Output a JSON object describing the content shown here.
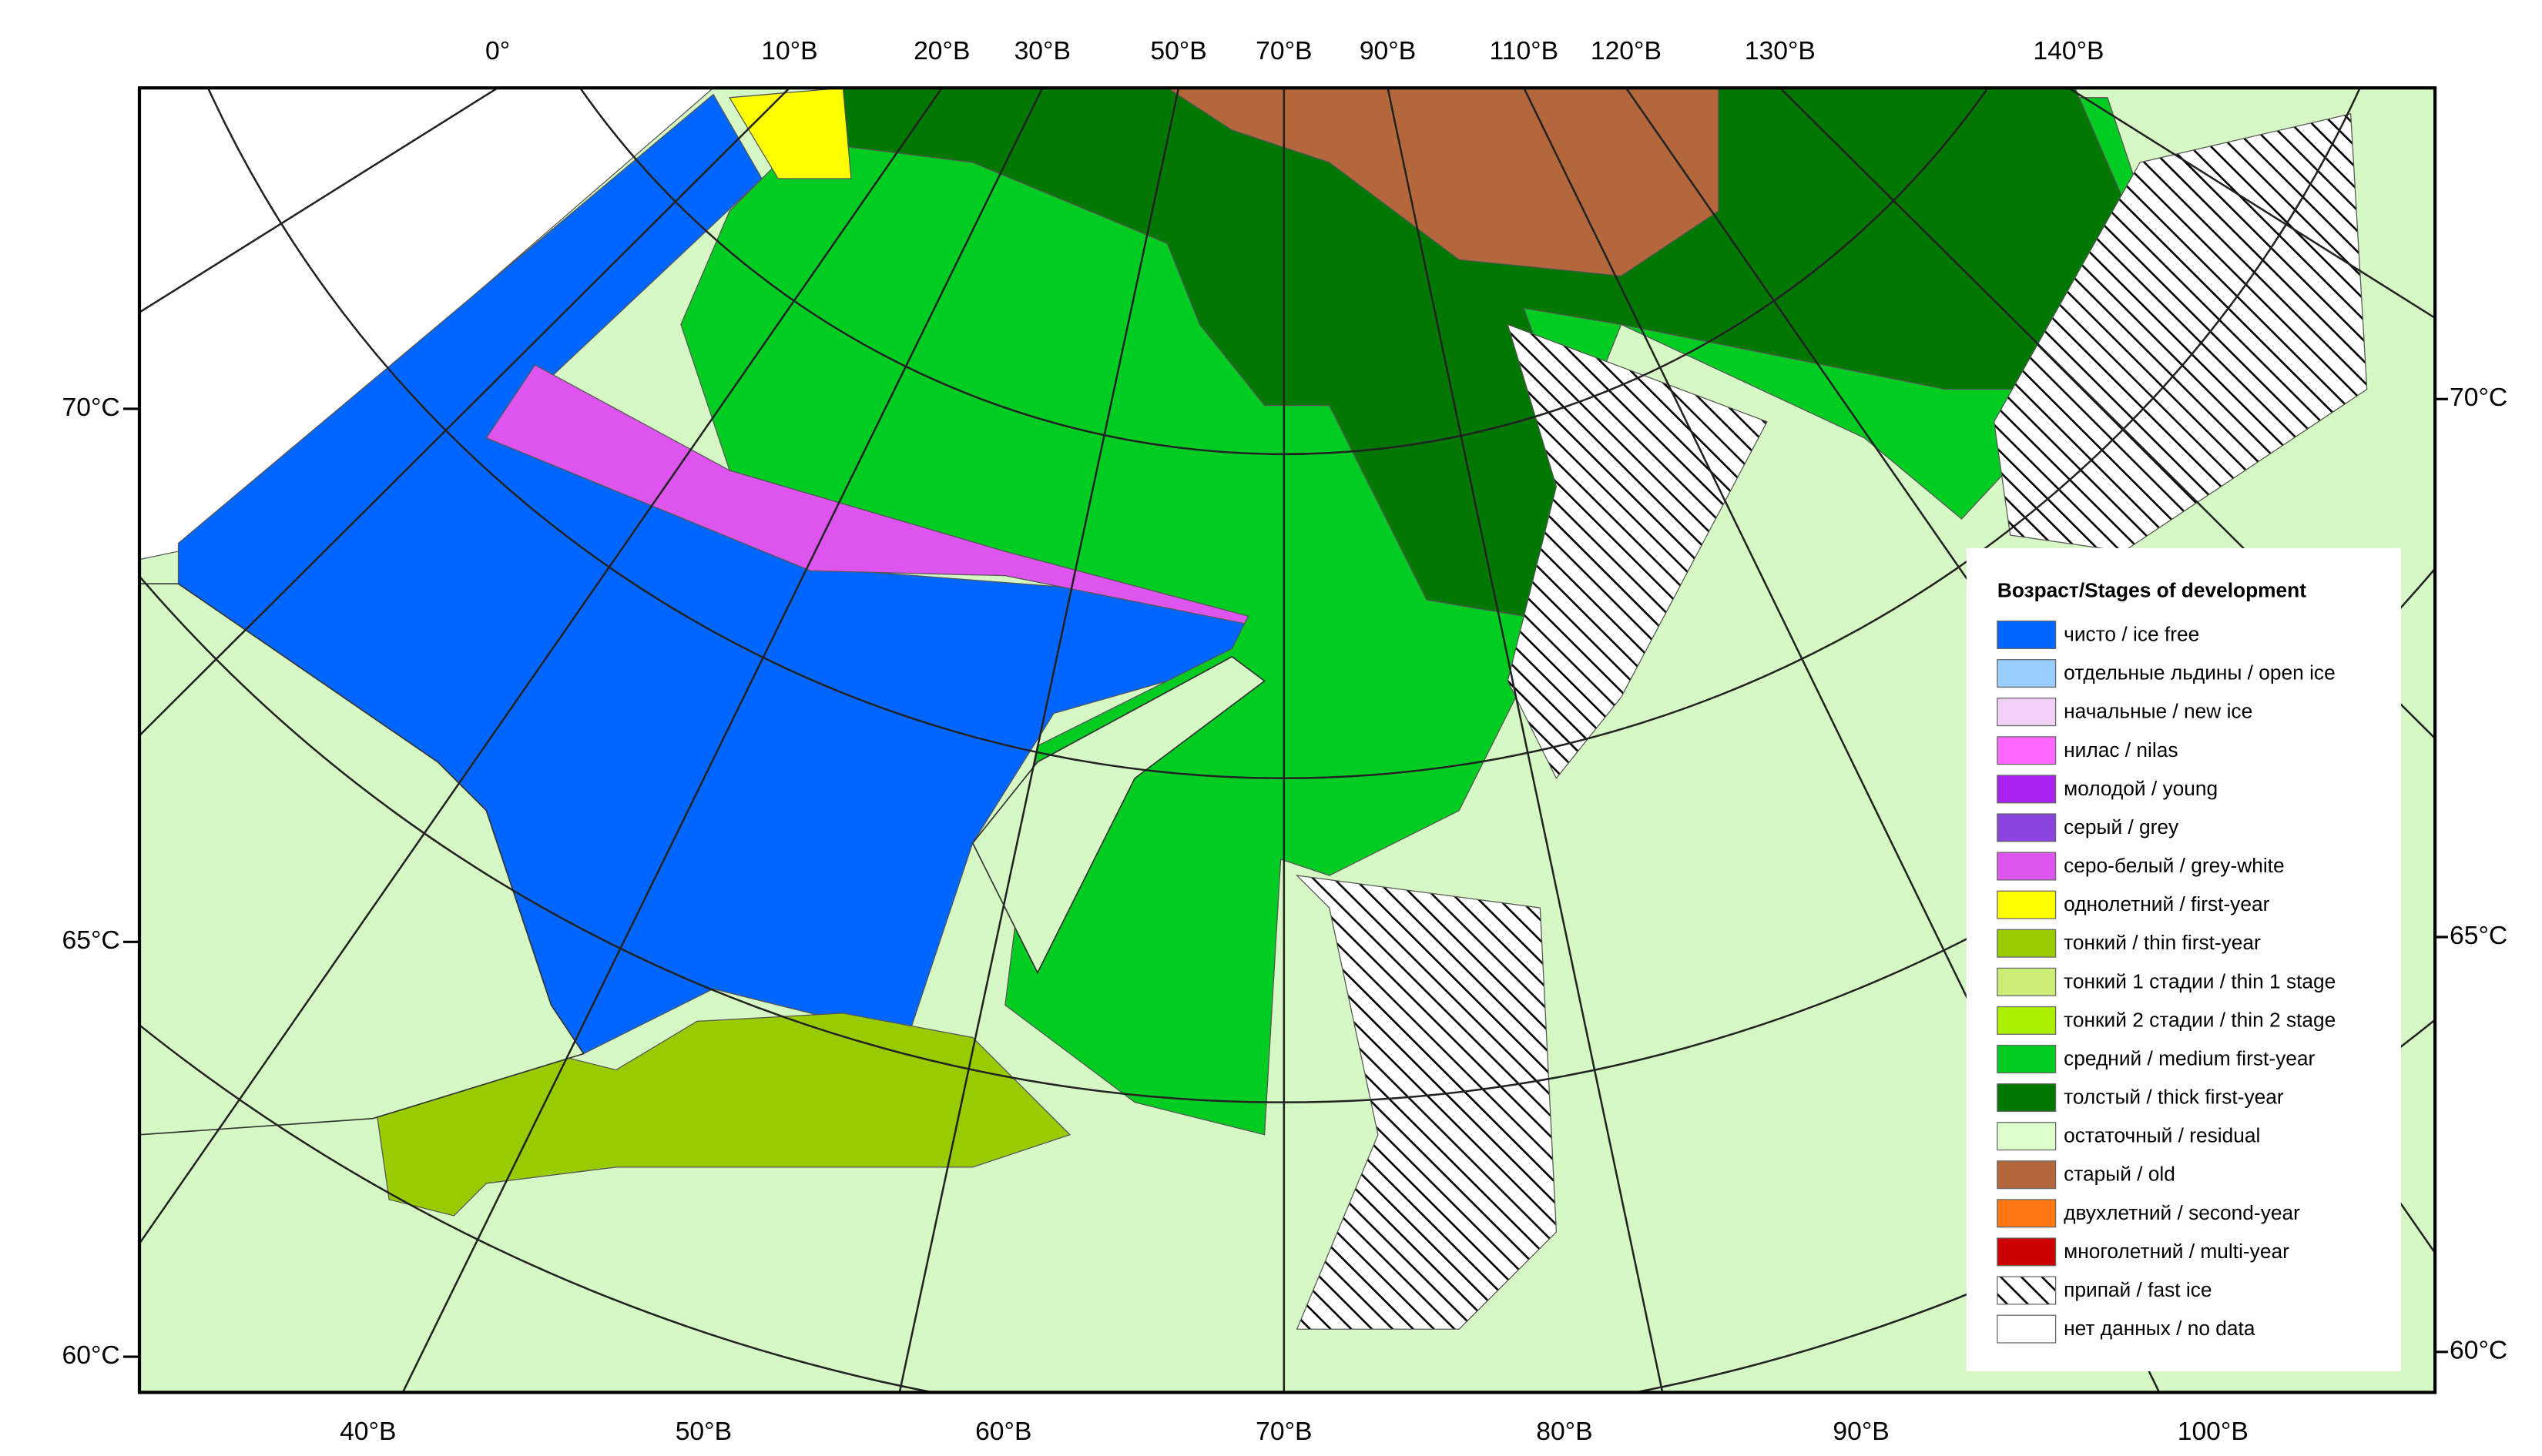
{
  "map": {
    "top_labels": [
      "0°",
      "10°В",
      "20°В",
      "30°В",
      "50°В",
      "70°В",
      "90°В",
      "110°В",
      "120°В",
      "130°В",
      "140°В"
    ],
    "bottom_labels": [
      "40°В",
      "50°В",
      "60°В",
      "70°В",
      "80°В",
      "90°В",
      "100°В"
    ],
    "left_labels": [
      "70°С",
      "65°С",
      "60°С"
    ],
    "right_labels": [
      "70°С",
      "65°С",
      "60°С"
    ],
    "legend": {
      "title": "Возраст/Stages of development",
      "items": [
        {
          "label": "чисто / ice free",
          "color": "#0066ff"
        },
        {
          "label": "отдельные льдины / open ice",
          "color": "#99ccff"
        },
        {
          "label": "начальные / new ice",
          "color": "#f0d0f5"
        },
        {
          "label": "нилас / nilas",
          "color": "#ff66ff"
        },
        {
          "label": "молодой / young",
          "color": "#aa22ee"
        },
        {
          "label": "серый / grey",
          "color": "#8844dd"
        },
        {
          "label": "серо-белый / grey-white",
          "color": "#dd55ee"
        },
        {
          "label": "однолетний / first-year",
          "color": "#ffff00"
        },
        {
          "label": "тонкий / thin first-year",
          "color": "#99cc00"
        },
        {
          "label": "тонкий 1 стадии / thin 1 stage",
          "color": "#ccee77"
        },
        {
          "label": "тонкий 2 стадии / thin 2 stage",
          "color": "#aaee00"
        },
        {
          "label": "средний / medium first-year",
          "color": "#00cc22"
        },
        {
          "label": "толстый / thick first-year",
          "color": "#007700"
        },
        {
          "label": "остаточный / residual",
          "color": "#ddffcc"
        },
        {
          "label": "старый / old",
          "color": "#b5673c"
        },
        {
          "label": "двухлетний / second-year",
          "color": "#ff7711"
        },
        {
          "label": "многолетний / multi-year",
          "color": "#cc0000"
        },
        {
          "label": "припай / fast ice",
          "pattern": "hatch"
        },
        {
          "label": "нет данных / no data",
          "color": "#ffffff"
        }
      ]
    }
  }
}
